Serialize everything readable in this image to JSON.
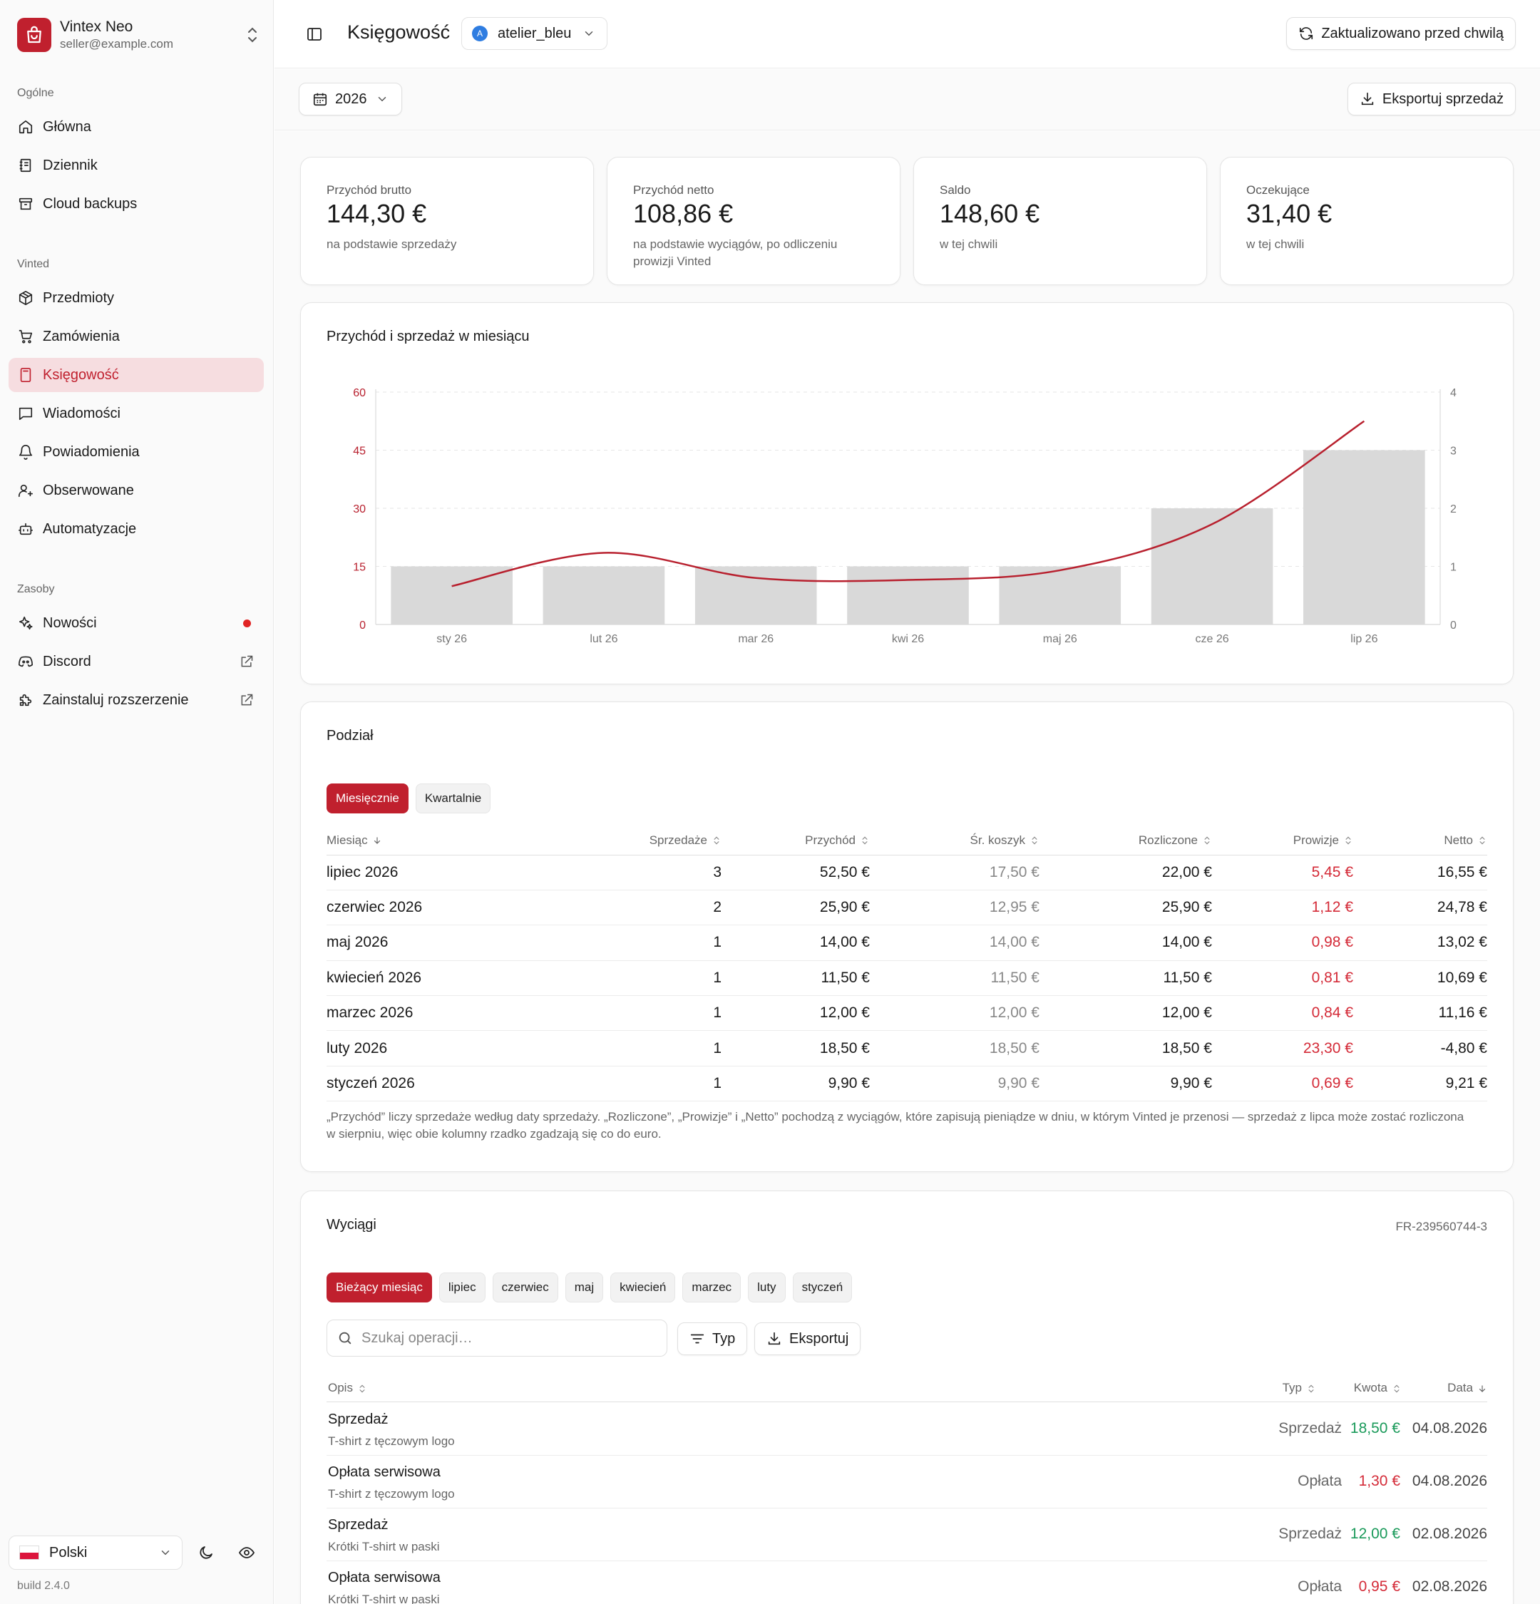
{
  "brand": {
    "name": "Vintex Neo",
    "email": "seller@example.com"
  },
  "nav": {
    "section_general": "Ogólne",
    "section_vinted": "Vinted",
    "section_resources": "Zasoby",
    "items": [
      {
        "label": "Główna",
        "icon": "home-icon"
      },
      {
        "label": "Dziennik",
        "icon": "journal-icon"
      },
      {
        "label": "Cloud backups",
        "icon": "archive-icon"
      },
      {
        "label": "Przedmioty",
        "icon": "package-icon"
      },
      {
        "label": "Zamówienia",
        "icon": "cart-icon"
      },
      {
        "label": "Księgowość",
        "icon": "calculator-icon"
      },
      {
        "label": "Wiadomości",
        "icon": "message-icon"
      },
      {
        "label": "Powiadomienia",
        "icon": "bell-icon"
      },
      {
        "label": "Obserwowane",
        "icon": "user-plus-icon"
      },
      {
        "label": "Automatyzacje",
        "icon": "bot-icon"
      },
      {
        "label": "Nowości",
        "icon": "sparkles-icon"
      },
      {
        "label": "Discord",
        "icon": "discord-icon"
      },
      {
        "label": "Zainstaluj rozszerzenie",
        "icon": "puzzle-icon"
      }
    ]
  },
  "footer": {
    "language": "Polski",
    "build": "build 2.4.0"
  },
  "header": {
    "title": "Księgowość",
    "account": "atelier_bleu",
    "account_initial": "A",
    "refresh_label": "Zaktualizowano przed chwilą"
  },
  "filters": {
    "year": "2026",
    "export_sales": "Eksportuj sprzedaż"
  },
  "stats": [
    {
      "label": "Przychód brutto",
      "value": "144,30 €",
      "sub": "na podstawie sprzedaży"
    },
    {
      "label": "Przychód netto",
      "value": "108,86 €",
      "sub": "na podstawie wyciągów, po odliczeniu prowizji Vinted"
    },
    {
      "label": "Saldo",
      "value": "148,60 €",
      "sub": "w tej chwili"
    },
    {
      "label": "Oczekujące",
      "value": "31,40 €",
      "sub": "w tej chwili"
    }
  ],
  "chart_title": "Przychód i sprzedaż w miesiącu",
  "chart_data": {
    "type": "bar",
    "categories": [
      "sty 26",
      "lut 26",
      "mar 26",
      "kwi 26",
      "maj 26",
      "cze 26",
      "lip 26"
    ],
    "series": [
      {
        "type": "bar",
        "axis": "right",
        "values": [
          1,
          1,
          1,
          1,
          1,
          2,
          3
        ]
      },
      {
        "type": "line",
        "axis": "left",
        "values": [
          9.9,
          18.5,
          12.0,
          11.5,
          14.0,
          25.9,
          52.5
        ]
      }
    ],
    "y_left_ticks": [
      "0",
      "15",
      "30",
      "45",
      "60"
    ],
    "y_right_ticks": [
      "0",
      "1",
      "2",
      "3",
      "4"
    ],
    "ylim_left": [
      0,
      60
    ],
    "ylim_right": [
      0,
      4
    ],
    "colors": {
      "bar": "#d9d9d9",
      "line": "#b8202e",
      "left_axis": "#b8202e"
    }
  },
  "breakdown": {
    "title": "Podział",
    "tabs": [
      "Miesięcznie",
      "Kwartalnie"
    ],
    "columns": [
      "Miesiąc",
      "Sprzedaże",
      "Przychód",
      "Śr. koszyk",
      "Rozliczone",
      "Prowizje",
      "Netto"
    ],
    "rows": [
      [
        "lipiec 2026",
        "3",
        "52,50 €",
        "17,50 €",
        "22,00 €",
        "5,45 €",
        "16,55 €"
      ],
      [
        "czerwiec 2026",
        "2",
        "25,90 €",
        "12,95 €",
        "25,90 €",
        "1,12 €",
        "24,78 €"
      ],
      [
        "maj 2026",
        "1",
        "14,00 €",
        "14,00 €",
        "14,00 €",
        "0,98 €",
        "13,02 €"
      ],
      [
        "kwiecień 2026",
        "1",
        "11,50 €",
        "11,50 €",
        "11,50 €",
        "0,81 €",
        "10,69 €"
      ],
      [
        "marzec 2026",
        "1",
        "12,00 €",
        "12,00 €",
        "12,00 €",
        "0,84 €",
        "11,16 €"
      ],
      [
        "luty 2026",
        "1",
        "18,50 €",
        "18,50 €",
        "18,50 €",
        "23,30 €",
        "-4,80 €"
      ],
      [
        "styczeń 2026",
        "1",
        "9,90 €",
        "9,90 €",
        "9,90 €",
        "0,69 €",
        "9,21 €"
      ]
    ],
    "note": "„Przychód” liczy sprzedaże według daty sprzedaży. „Rozliczone”, „Prowizje” i „Netto” pochodzą z wyciągów, które zapisują pieniądze w dniu, w którym Vinted je przenosi — sprzedaż z lipca może zostać rozliczona w sierpniu, więc obie kolumny rzadko zgadzają się co do euro."
  },
  "statements": {
    "title": "Wyciągi",
    "reference": "FR-239560744-3",
    "tabs": [
      "Bieżący miesiąc",
      "lipiec",
      "czerwiec",
      "maj",
      "kwiecień",
      "marzec",
      "luty",
      "styczeń"
    ],
    "search_placeholder": "Szukaj operacji…",
    "type_button": "Typ",
    "export_button": "Eksportuj",
    "columns": {
      "desc": "Opis",
      "type": "Typ",
      "amount": "Kwota",
      "date": "Data"
    },
    "rows": [
      {
        "title": "Sprzedaż",
        "sub": "T-shirt z tęczowym logo",
        "type": "Sprzedaż",
        "amount": "18,50 €",
        "kind": "pos",
        "date": "04.08.2026"
      },
      {
        "title": "Opłata serwisowa",
        "sub": "T-shirt z tęczowym logo",
        "type": "Opłata",
        "amount": "1,30 €",
        "kind": "neg",
        "date": "04.08.2026"
      },
      {
        "title": "Sprzedaż",
        "sub": "Krótki T-shirt w paski",
        "type": "Sprzedaż",
        "amount": "12,00 €",
        "kind": "pos",
        "date": "02.08.2026"
      },
      {
        "title": "Opłata serwisowa",
        "sub": "Krótki T-shirt w paski",
        "type": "Opłata",
        "amount": "0,95 €",
        "kind": "neg",
        "date": "02.08.2026"
      }
    ]
  }
}
